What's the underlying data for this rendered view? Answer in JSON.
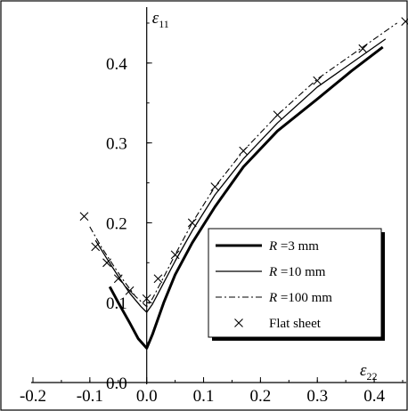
{
  "chart_data": {
    "type": "line",
    "xlabel": {
      "symbol": "ε",
      "subscript": "22"
    },
    "ylabel": {
      "symbol": "ε",
      "subscript": "11"
    },
    "xlim": [
      -0.2,
      0.45
    ],
    "ylim": [
      0.0,
      0.47
    ],
    "x_ticks": [
      {
        "value": -0.2,
        "label": "-0.2"
      },
      {
        "value": -0.1,
        "label": "-0.1"
      },
      {
        "value": 0.0,
        "label": "0.0"
      },
      {
        "value": 0.1,
        "label": "0.1"
      },
      {
        "value": 0.2,
        "label": "0.2"
      },
      {
        "value": 0.3,
        "label": "0.3"
      },
      {
        "value": 0.4,
        "label": "0.4"
      }
    ],
    "y_ticks": [
      {
        "value": 0.0,
        "label": "0.0"
      },
      {
        "value": 0.1,
        "label": "0.1"
      },
      {
        "value": 0.2,
        "label": "0.2"
      },
      {
        "value": 0.3,
        "label": "0.3"
      },
      {
        "value": 0.4,
        "label": "0.4"
      }
    ],
    "grid": false,
    "legend_position": "bottom-right",
    "series": [
      {
        "name": "R =3 mm",
        "name_italic": "R",
        "name_rest": " =3 mm",
        "style": "thick-solid",
        "x": [
          -0.065,
          -0.05,
          -0.03,
          -0.015,
          0.0,
          0.01,
          0.03,
          0.05,
          0.08,
          0.12,
          0.17,
          0.23,
          0.3,
          0.36,
          0.415
        ],
        "y": [
          0.12,
          0.1,
          0.075,
          0.055,
          0.043,
          0.06,
          0.1,
          0.135,
          0.175,
          0.22,
          0.27,
          0.315,
          0.355,
          0.39,
          0.42
        ]
      },
      {
        "name": "R =10 mm",
        "name_italic": "R",
        "name_rest": " =10 mm",
        "style": "thin-solid",
        "x": [
          -0.09,
          -0.07,
          -0.05,
          -0.03,
          -0.01,
          0.0,
          0.01,
          0.03,
          0.05,
          0.08,
          0.12,
          0.17,
          0.23,
          0.3,
          0.36,
          0.42
        ],
        "y": [
          0.178,
          0.155,
          0.133,
          0.112,
          0.095,
          0.088,
          0.098,
          0.125,
          0.152,
          0.19,
          0.235,
          0.28,
          0.325,
          0.37,
          0.4,
          0.43
        ]
      },
      {
        "name": "R =100 mm",
        "name_italic": "R",
        "name_rest": " =100 mm",
        "style": "dash-dot",
        "x": [
          -0.1,
          -0.08,
          -0.06,
          -0.04,
          -0.02,
          0.0,
          0.01,
          0.03,
          0.05,
          0.08,
          0.12,
          0.17,
          0.23,
          0.3,
          0.37,
          0.44
        ],
        "y": [
          0.195,
          0.17,
          0.148,
          0.127,
          0.108,
          0.095,
          0.105,
          0.132,
          0.16,
          0.2,
          0.245,
          0.29,
          0.335,
          0.38,
          0.415,
          0.45
        ]
      },
      {
        "name": "Flat sheet",
        "style": "markers-x",
        "x": [
          -0.11,
          -0.09,
          -0.07,
          -0.05,
          -0.03,
          0.0,
          0.02,
          0.05,
          0.08,
          0.12,
          0.17,
          0.23,
          0.3,
          0.38,
          0.455
        ],
        "y": [
          0.208,
          0.17,
          0.15,
          0.13,
          0.115,
          0.105,
          0.13,
          0.16,
          0.2,
          0.245,
          0.29,
          0.335,
          0.378,
          0.418,
          0.452
        ]
      }
    ]
  }
}
